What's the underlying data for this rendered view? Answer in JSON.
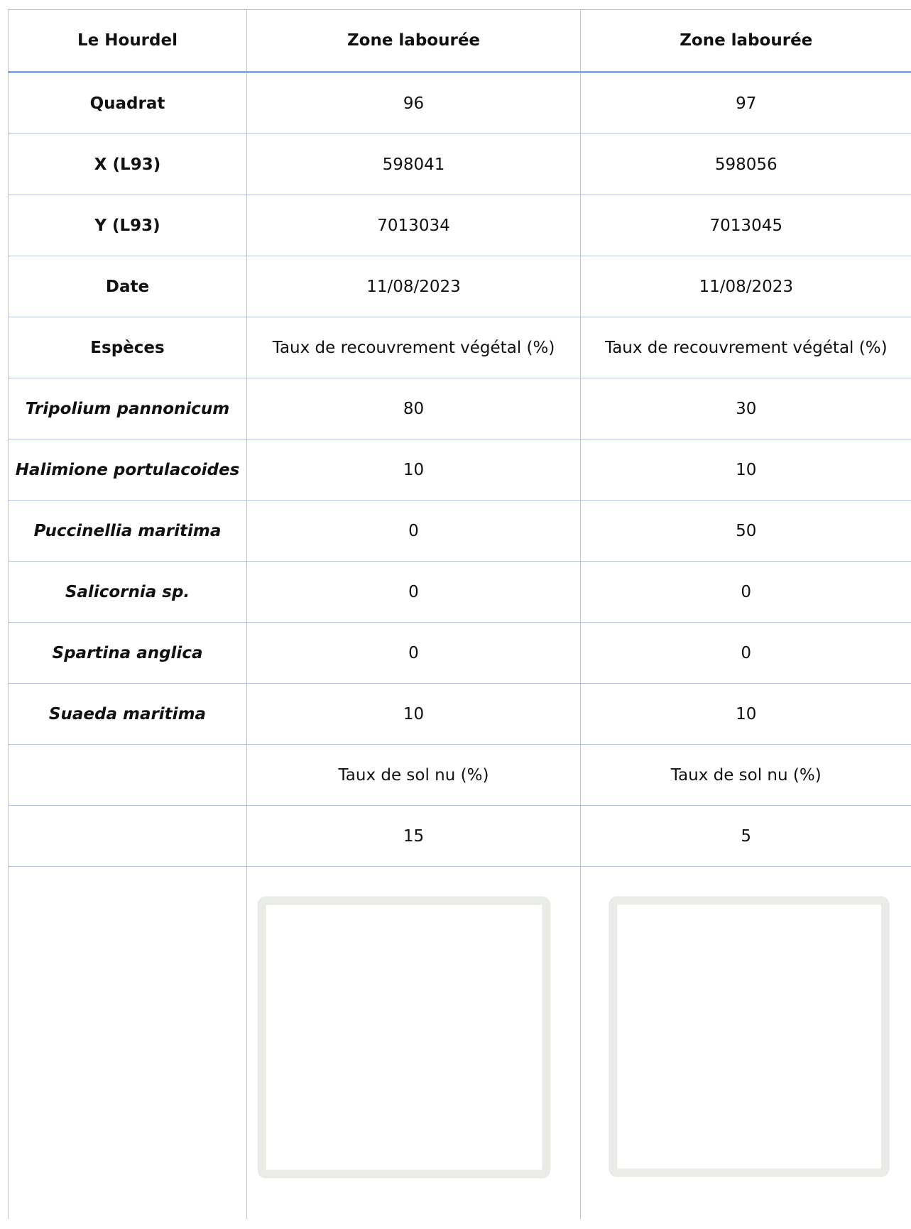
{
  "header": {
    "site": "Le Hourdel",
    "columns": [
      "Zone labourée",
      "Zone labourée"
    ]
  },
  "rows": [
    {
      "label": "Quadrat",
      "values": [
        96,
        97
      ]
    },
    {
      "label": "X (L93)",
      "values": [
        598041,
        598056
      ]
    },
    {
      "label": "Y (L93)",
      "values": [
        7013034,
        7013045
      ]
    },
    {
      "label": "Date",
      "values": [
        "11/08/2023",
        "11/08/2023"
      ]
    },
    {
      "label": "Espèces",
      "values": [
        "Taux de recouvrement végétal (%)",
        "Taux de recouvrement végétal (%)"
      ]
    }
  ],
  "species": [
    {
      "label": "Tripolium pannonicum",
      "values": [
        80,
        30
      ]
    },
    {
      "label": "Halimione portulacoides",
      "values": [
        10,
        10
      ]
    },
    {
      "label": "Puccinellia maritima",
      "values": [
        0,
        50
      ]
    },
    {
      "label": "Salicornia sp.",
      "values": [
        0,
        0
      ]
    },
    {
      "label": "Spartina anglica",
      "values": [
        0,
        0
      ]
    },
    {
      "label": "Suaeda maritima",
      "values": [
        10,
        10
      ]
    }
  ],
  "extra": [
    {
      "values": [
        "Taux de sol nu (%)",
        "Taux de sol nu (%)"
      ]
    },
    {
      "values": [
        15,
        5
      ]
    }
  ]
}
